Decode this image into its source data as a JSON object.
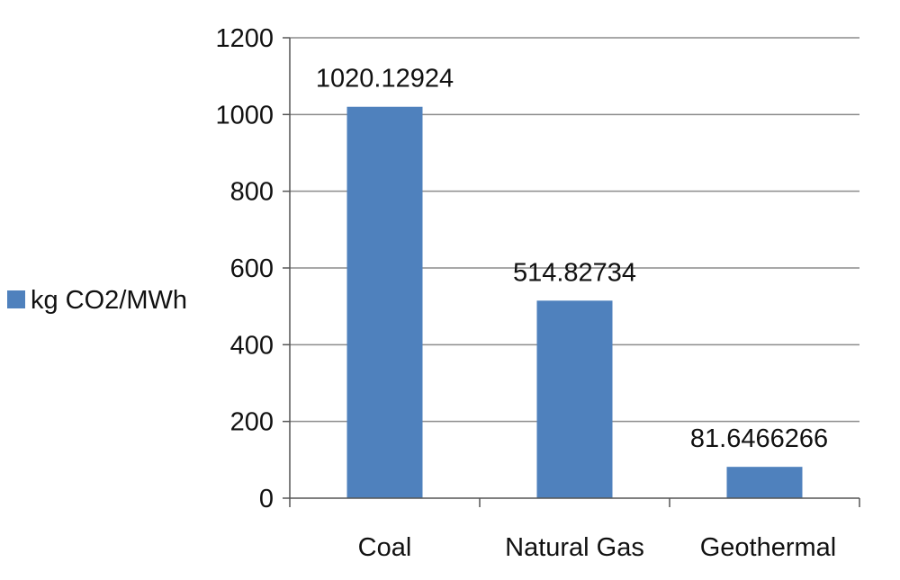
{
  "chart_data": {
    "type": "bar",
    "categories": [
      "Coal",
      "Natural Gas",
      "Geothermal"
    ],
    "series": [
      {
        "name": "kg CO2/MWh",
        "values": [
          1020.12924,
          514.82734,
          81.6466266
        ],
        "labels": [
          "1020.12924",
          "514.82734",
          "81.6466266"
        ],
        "color": "#4f81bd"
      }
    ],
    "y_ticks": [
      "0",
      "200",
      "400",
      "600",
      "800",
      "1000",
      "1200"
    ],
    "ylim": [
      0,
      1200
    ],
    "grid": true,
    "legend_position": "left",
    "colors": {
      "bar": "#4f81bd",
      "grid": "#8c8c8c",
      "axis": "#555555"
    }
  }
}
